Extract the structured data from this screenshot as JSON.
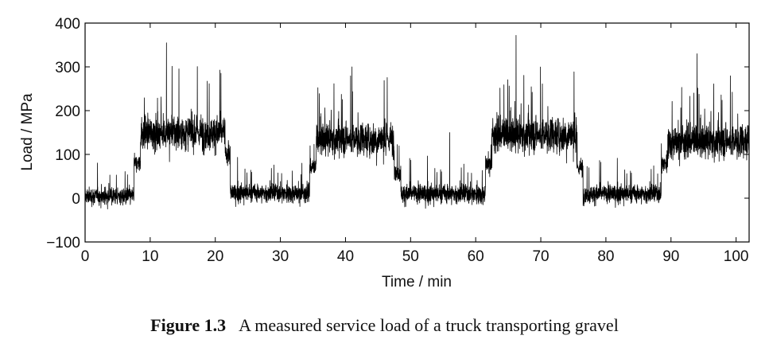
{
  "caption": {
    "number": "Figure 1.3",
    "text": "A measured service load of a truck transporting gravel"
  },
  "chart_data": {
    "type": "line",
    "title": "",
    "xlabel": "Time / min",
    "ylabel": "Load / MPa",
    "xlim": [
      0,
      102
    ],
    "ylim": [
      -100,
      400
    ],
    "xticks": [
      0,
      10,
      20,
      30,
      40,
      50,
      60,
      70,
      80,
      90,
      100
    ],
    "yticks": [
      -100,
      0,
      100,
      200,
      300,
      400
    ],
    "xtick_labels": [
      "0",
      "10",
      "20",
      "30",
      "40",
      "50",
      "60",
      "70",
      "80",
      "90",
      "100"
    ],
    "ytick_labels": [
      "−100",
      "0",
      "100",
      "200",
      "300",
      "400"
    ],
    "grid": false,
    "legend": "none",
    "line_color": "#000000",
    "series": [
      {
        "segments": [
          {
            "x_start": 0,
            "x_end": 7.5,
            "mean": 5,
            "spread": 75
          },
          {
            "x_start": 7.5,
            "x_end": 8.5,
            "mean": 80,
            "spread": 70
          },
          {
            "x_start": 8.5,
            "x_end": 21.5,
            "mean": 150,
            "spread": 150
          },
          {
            "x_start": 21.5,
            "x_end": 22.3,
            "mean": 100,
            "spread": 90
          },
          {
            "x_start": 22.3,
            "x_end": 34.5,
            "mean": 12,
            "spread": 80
          },
          {
            "x_start": 34.5,
            "x_end": 35.5,
            "mean": 70,
            "spread": 70
          },
          {
            "x_start": 35.5,
            "x_end": 47.5,
            "mean": 135,
            "spread": 140
          },
          {
            "x_start": 47.5,
            "x_end": 48.5,
            "mean": 60,
            "spread": 80
          },
          {
            "x_start": 48.5,
            "x_end": 61.5,
            "mean": 10,
            "spread": 85
          },
          {
            "x_start": 61.5,
            "x_end": 62.5,
            "mean": 80,
            "spread": 80
          },
          {
            "x_start": 62.5,
            "x_end": 75.5,
            "mean": 145,
            "spread": 150
          },
          {
            "x_start": 75.5,
            "x_end": 76.5,
            "mean": 70,
            "spread": 80
          },
          {
            "x_start": 76.5,
            "x_end": 88.5,
            "mean": 10,
            "spread": 80
          },
          {
            "x_start": 88.5,
            "x_end": 89.5,
            "mean": 80,
            "spread": 80
          },
          {
            "x_start": 89.5,
            "x_end": 102,
            "mean": 130,
            "spread": 145
          }
        ],
        "peaks": [
          {
            "x": 12.5,
            "y": 355
          },
          {
            "x": 66.2,
            "y": 372
          },
          {
            "x": 94.0,
            "y": 330
          },
          {
            "x": 41.0,
            "y": 300
          },
          {
            "x": 56.0,
            "y": 150
          }
        ]
      }
    ]
  }
}
